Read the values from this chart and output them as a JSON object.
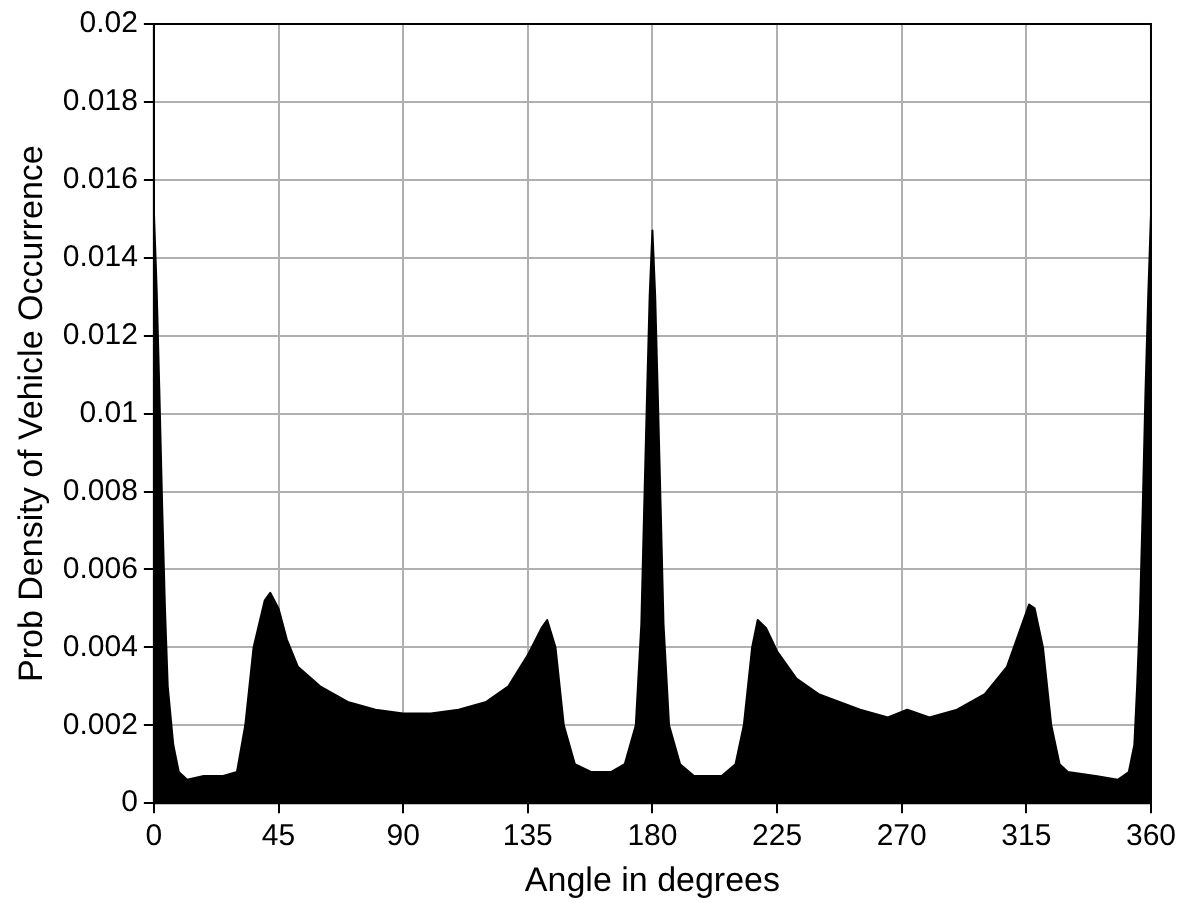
{
  "chart_data": {
    "type": "area",
    "xlabel": "Angle in degrees",
    "ylabel": "Prob Density of Vehicle Occurrence",
    "xlim": [
      0,
      360
    ],
    "xticks": [
      0,
      45,
      90,
      135,
      180,
      225,
      270,
      315,
      360
    ],
    "ylim": [
      0,
      0.02
    ],
    "yticks": [
      0,
      0.002,
      0.004,
      0.006,
      0.008,
      0.01,
      0.012,
      0.014,
      0.016,
      0.018,
      0.02
    ],
    "grid": true,
    "marker": "none",
    "line_style": "solid",
    "series": [
      {
        "color": "#000000",
        "x": [
          0,
          1,
          2,
          3,
          4,
          5,
          7,
          9,
          12,
          18,
          25,
          30,
          33,
          36,
          40,
          42,
          45,
          48,
          52,
          60,
          70,
          80,
          90,
          100,
          110,
          120,
          128,
          135,
          140,
          142,
          145,
          148,
          152,
          158,
          165,
          170,
          174,
          176,
          177,
          178,
          179,
          180,
          181,
          182,
          183,
          184,
          186,
          190,
          195,
          205,
          210,
          213,
          216,
          218,
          221,
          225,
          232,
          240,
          255,
          265,
          272,
          280,
          290,
          300,
          308,
          313,
          316,
          318,
          321,
          324,
          327,
          330,
          340,
          348,
          352,
          354,
          355,
          356,
          357,
          358,
          359,
          360
        ],
        "values": [
          0.0152,
          0.0132,
          0.0105,
          0.0076,
          0.005,
          0.003,
          0.0015,
          0.0008,
          0.0006,
          0.0007,
          0.0007,
          0.0008,
          0.002,
          0.004,
          0.0052,
          0.0054,
          0.005,
          0.0042,
          0.0035,
          0.003,
          0.0026,
          0.0024,
          0.0023,
          0.0023,
          0.0024,
          0.0026,
          0.003,
          0.0038,
          0.0045,
          0.0047,
          0.004,
          0.002,
          0.001,
          0.0008,
          0.0008,
          0.001,
          0.002,
          0.0046,
          0.0075,
          0.0103,
          0.013,
          0.0147,
          0.013,
          0.0103,
          0.0075,
          0.0046,
          0.002,
          0.001,
          0.0007,
          0.0007,
          0.001,
          0.002,
          0.004,
          0.0047,
          0.0045,
          0.0039,
          0.0032,
          0.0028,
          0.0024,
          0.0022,
          0.0024,
          0.0022,
          0.0024,
          0.0028,
          0.0035,
          0.0045,
          0.0051,
          0.005,
          0.004,
          0.002,
          0.001,
          0.0008,
          0.0007,
          0.0006,
          0.0008,
          0.0015,
          0.003,
          0.0048,
          0.0075,
          0.0105,
          0.013,
          0.0151
        ]
      }
    ]
  }
}
